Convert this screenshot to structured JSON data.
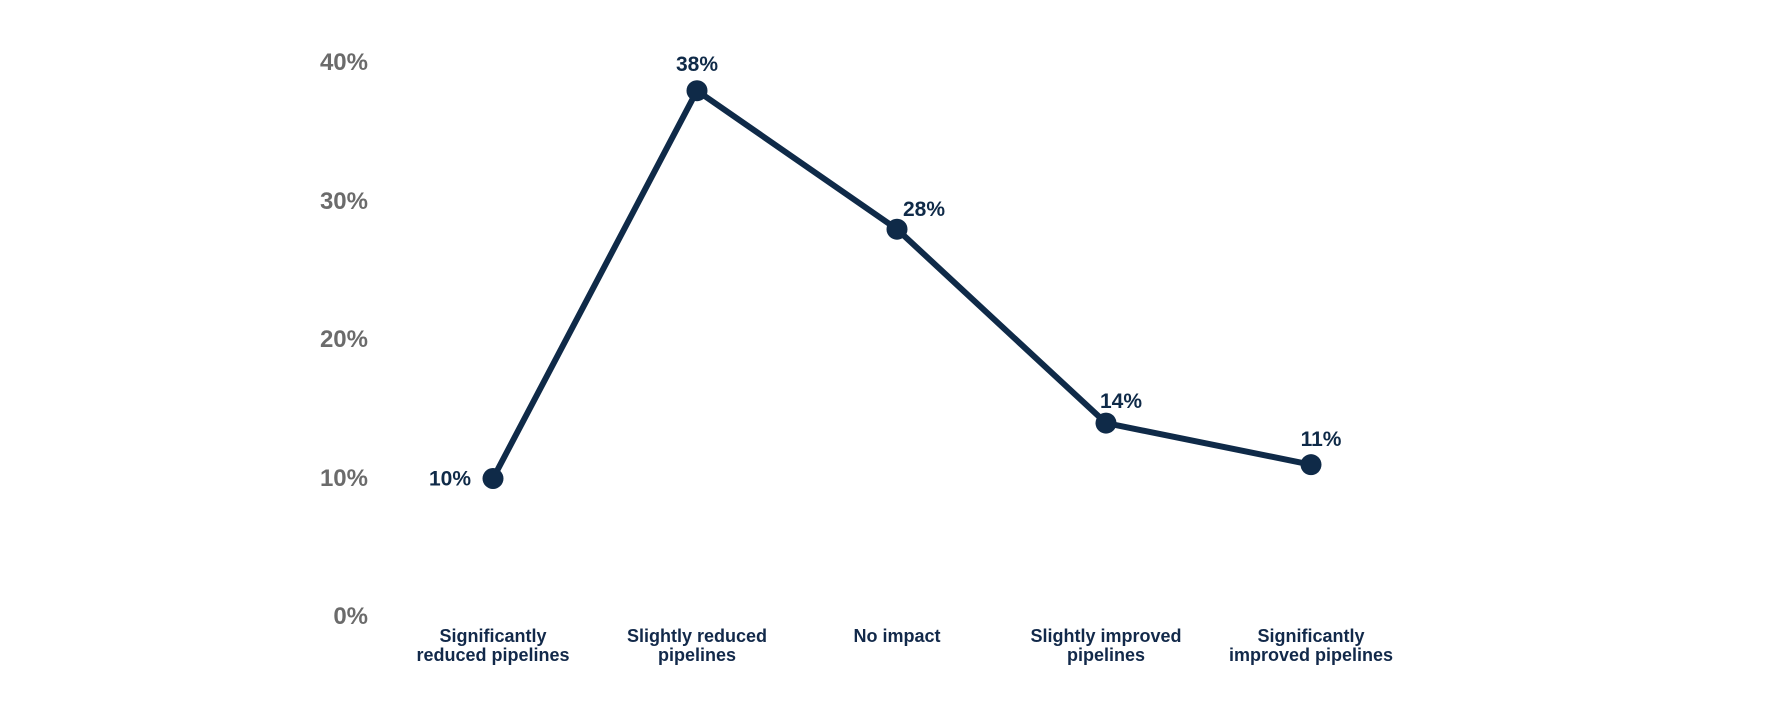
{
  "chart_data": {
    "type": "line",
    "categories": [
      "Significantly\nreduced pipelines",
      "Slightly reduced\npipelines",
      "No impact",
      "Slightly improved\npipelines",
      "Significantly\nimproved pipelines"
    ],
    "values": [
      10,
      38,
      28,
      14,
      11
    ],
    "data_labels": [
      "10%",
      "38%",
      "28%",
      "14%",
      "11%"
    ],
    "y_ticks": [
      {
        "value": 0,
        "label": "0%"
      },
      {
        "value": 10,
        "label": "10%"
      },
      {
        "value": 20,
        "label": "20%"
      },
      {
        "value": 30,
        "label": "30%"
      },
      {
        "value": 40,
        "label": "40%"
      }
    ],
    "ylim": [
      0,
      40
    ],
    "grid": false,
    "axis_lines": false,
    "legend_position": "none",
    "label_placement": [
      "left",
      "top",
      "top-right",
      "top-right",
      "top-right"
    ],
    "colors": {
      "line": "#0f2a48",
      "point": "#0f2a48",
      "data_label": "#0f2a48",
      "category_label": "#12294a",
      "axis_tick": "#6b6b6b",
      "background": "#ffffff"
    }
  }
}
